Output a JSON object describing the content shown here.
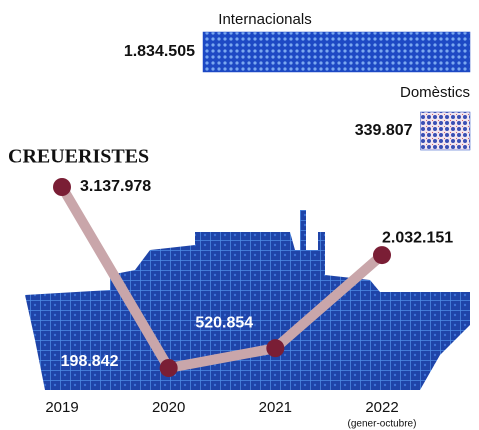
{
  "chart_data": [
    {
      "type": "bar",
      "categories": [
        "Internacionals",
        "Domèstics"
      ],
      "values": [
        1834505,
        339807
      ],
      "value_labels": [
        "1.834.505",
        "339.807"
      ],
      "color": "#1d49c4"
    },
    {
      "type": "line",
      "title": "CREUERISTES",
      "categories": [
        "2019",
        "2020",
        "2021",
        "2022"
      ],
      "note": "(gener-octubre)",
      "values": [
        3137978,
        198842,
        520854,
        2032151
      ],
      "value_labels": [
        "3.137.978",
        "198.842",
        "520.854",
        "2.032.151"
      ],
      "color": "#c9a6aa",
      "marker_color": "#7a1e35"
    }
  ]
}
